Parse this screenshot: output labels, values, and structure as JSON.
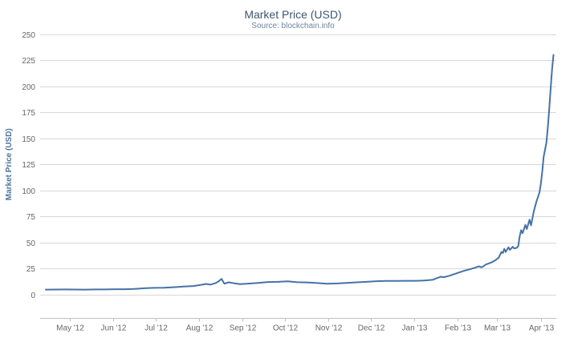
{
  "chart_data": {
    "type": "line",
    "title": "Market Price (USD)",
    "subtitle": "Source: blockchain.info",
    "xlabel": "",
    "ylabel": "Market Price (USD)",
    "ylim": [
      0,
      250
    ],
    "y_ticks": [
      0,
      25,
      50,
      75,
      100,
      125,
      150,
      175,
      200,
      225,
      250
    ],
    "x_range": [
      "2012-04-10",
      "2013-04-12"
    ],
    "x_ticks": [
      {
        "label": "May '12",
        "date": "2012-05-01"
      },
      {
        "label": "Jun '12",
        "date": "2012-06-01"
      },
      {
        "label": "Jul '12",
        "date": "2012-07-01"
      },
      {
        "label": "Aug '12",
        "date": "2012-08-01"
      },
      {
        "label": "Sep '12",
        "date": "2012-09-01"
      },
      {
        "label": "Oct '12",
        "date": "2012-10-01"
      },
      {
        "label": "Nov '12",
        "date": "2012-11-01"
      },
      {
        "label": "Dec '12",
        "date": "2012-12-01"
      },
      {
        "label": "Jan '13",
        "date": "2013-01-01"
      },
      {
        "label": "Feb '13",
        "date": "2013-02-01"
      },
      {
        "label": "Mar '13",
        "date": "2013-03-01"
      },
      {
        "label": "Apr '13",
        "date": "2013-04-01"
      }
    ],
    "grid": true,
    "legend": false,
    "series": [
      {
        "name": "Market Price (USD)",
        "color": "#4572a7",
        "points": [
          [
            "2012-04-14",
            4.9
          ],
          [
            "2012-04-21",
            5.0
          ],
          [
            "2012-04-28",
            5.1
          ],
          [
            "2012-05-05",
            5.0
          ],
          [
            "2012-05-12",
            4.9
          ],
          [
            "2012-05-19",
            5.1
          ],
          [
            "2012-05-26",
            5.1
          ],
          [
            "2012-06-02",
            5.3
          ],
          [
            "2012-06-09",
            5.3
          ],
          [
            "2012-06-16",
            5.6
          ],
          [
            "2012-06-23",
            6.2
          ],
          [
            "2012-06-30",
            6.6
          ],
          [
            "2012-07-07",
            6.7
          ],
          [
            "2012-07-14",
            7.2
          ],
          [
            "2012-07-21",
            7.9
          ],
          [
            "2012-07-28",
            8.4
          ],
          [
            "2012-08-02",
            9.4
          ],
          [
            "2012-08-06",
            10.4
          ],
          [
            "2012-08-09",
            9.7
          ],
          [
            "2012-08-13",
            11.3
          ],
          [
            "2012-08-15",
            13.0
          ],
          [
            "2012-08-17",
            15.2
          ],
          [
            "2012-08-19",
            10.6
          ],
          [
            "2012-08-22",
            11.9
          ],
          [
            "2012-08-26",
            11.0
          ],
          [
            "2012-08-30",
            10.2
          ],
          [
            "2012-09-05",
            10.7
          ],
          [
            "2012-09-12",
            11.4
          ],
          [
            "2012-09-19",
            12.2
          ],
          [
            "2012-09-26",
            12.4
          ],
          [
            "2012-10-03",
            12.9
          ],
          [
            "2012-10-10",
            12.0
          ],
          [
            "2012-10-17",
            11.8
          ],
          [
            "2012-10-24",
            11.2
          ],
          [
            "2012-10-31",
            10.6
          ],
          [
            "2012-11-07",
            10.8
          ],
          [
            "2012-11-14",
            11.3
          ],
          [
            "2012-11-21",
            11.9
          ],
          [
            "2012-11-28",
            12.4
          ],
          [
            "2012-12-05",
            13.0
          ],
          [
            "2012-12-12",
            13.3
          ],
          [
            "2012-12-19",
            13.3
          ],
          [
            "2012-12-26",
            13.4
          ],
          [
            "2013-01-02",
            13.4
          ],
          [
            "2013-01-08",
            13.7
          ],
          [
            "2013-01-14",
            14.3
          ],
          [
            "2013-01-17",
            15.9
          ],
          [
            "2013-01-20",
            17.3
          ],
          [
            "2013-01-22",
            16.8
          ],
          [
            "2013-01-26",
            18.2
          ],
          [
            "2013-01-31",
            20.5
          ],
          [
            "2013-02-05",
            22.8
          ],
          [
            "2013-02-09",
            24.3
          ],
          [
            "2013-02-13",
            25.9
          ],
          [
            "2013-02-16",
            27.2
          ],
          [
            "2013-02-18",
            26.3
          ],
          [
            "2013-02-21",
            29.0
          ],
          [
            "2013-02-25",
            31.0
          ],
          [
            "2013-02-28",
            33.4
          ],
          [
            "2013-03-02",
            35.5
          ],
          [
            "2013-03-04",
            41.0
          ],
          [
            "2013-03-05",
            40.0
          ],
          [
            "2013-03-06",
            44.0
          ],
          [
            "2013-03-07",
            41.0
          ],
          [
            "2013-03-09",
            45.5
          ],
          [
            "2013-03-10",
            43.0
          ],
          [
            "2013-03-12",
            46.0
          ],
          [
            "2013-03-13",
            44.5
          ],
          [
            "2013-03-15",
            45.0
          ],
          [
            "2013-03-16",
            47.0
          ],
          [
            "2013-03-17",
            56.0
          ],
          [
            "2013-03-18",
            62.0
          ],
          [
            "2013-03-19",
            59.0
          ],
          [
            "2013-03-21",
            67.0
          ],
          [
            "2013-03-22",
            63.0
          ],
          [
            "2013-03-24",
            72.0
          ],
          [
            "2013-03-25",
            66.5
          ],
          [
            "2013-03-27",
            80.0
          ],
          [
            "2013-03-29",
            90.0
          ],
          [
            "2013-03-31",
            98.0
          ],
          [
            "2013-04-01",
            106.0
          ],
          [
            "2013-04-02",
            118.0
          ],
          [
            "2013-04-03",
            132.0
          ],
          [
            "2013-04-05",
            146.0
          ],
          [
            "2013-04-06",
            161.0
          ],
          [
            "2013-04-07",
            178.0
          ],
          [
            "2013-04-08",
            198.0
          ],
          [
            "2013-04-09",
            216.0
          ],
          [
            "2013-04-10",
            230.0
          ]
        ]
      }
    ]
  },
  "colors": {
    "line": "#4572a7",
    "title": "#3e576f",
    "subtitle": "#6d869f",
    "axis_label": "#666666",
    "grid_line": "#d8d8d8",
    "axis_line": "#c0c0c0",
    "y_axis_title": "#4d759e",
    "background": "#ffffff"
  }
}
